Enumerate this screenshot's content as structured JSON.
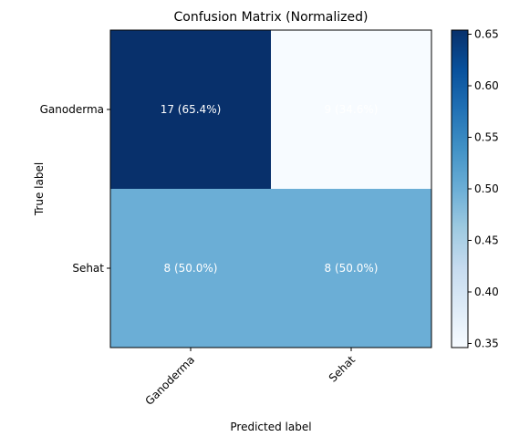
{
  "chart_data": {
    "type": "heatmap",
    "title": "Confusion Matrix (Normalized)",
    "xlabel": "Predicted label",
    "ylabel": "True label",
    "row_labels": [
      "Ganoderma",
      "Sehat"
    ],
    "col_labels": [
      "Ganoderma",
      "Sehat"
    ],
    "values": [
      [
        0.654,
        0.346
      ],
      [
        0.5,
        0.5
      ]
    ],
    "cell_text": [
      [
        "17 (65.4%)",
        "9 (34.6%)"
      ],
      [
        "8 (50.0%)",
        "8 (50.0%)"
      ]
    ],
    "colormap": "Blues",
    "colorbar": {
      "min": 0.346,
      "max": 0.654,
      "ticks": [
        0.35,
        0.4,
        0.45,
        0.5,
        0.55,
        0.6,
        0.65
      ],
      "tick_labels": [
        "0.35",
        "0.40",
        "0.45",
        "0.50",
        "0.55",
        "0.60",
        "0.65"
      ]
    },
    "colors": {
      "low": "#f7fbff",
      "mid": "#6baed6",
      "high": "#08306b",
      "cell_text": "#ffffff"
    }
  }
}
